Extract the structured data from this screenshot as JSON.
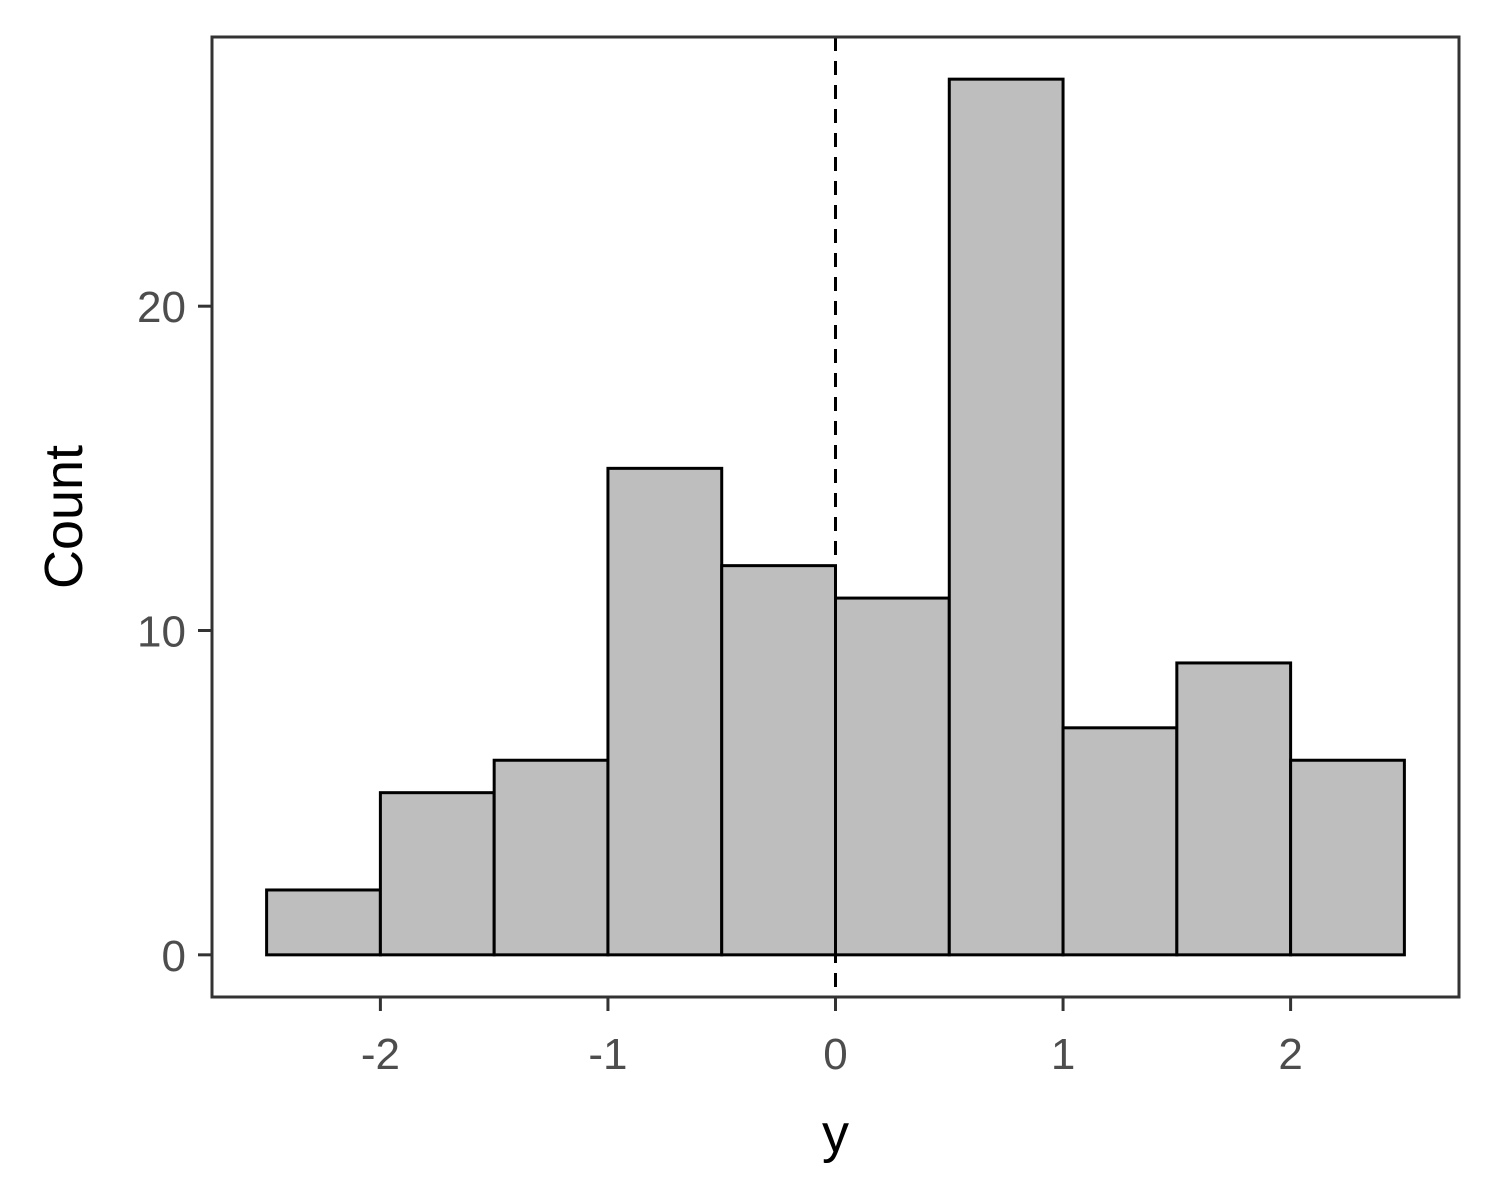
{
  "chart_data": {
    "type": "bar",
    "subtype": "histogram",
    "title": "",
    "xlabel": "y",
    "ylabel": "Count",
    "bin_width": 0.5,
    "bins": [
      {
        "x0": -2.5,
        "x1": -2.0,
        "count": 2
      },
      {
        "x0": -2.0,
        "x1": -1.5,
        "count": 5
      },
      {
        "x0": -1.5,
        "x1": -1.0,
        "count": 6
      },
      {
        "x0": -1.0,
        "x1": -0.5,
        "count": 15
      },
      {
        "x0": -0.5,
        "x1": 0.0,
        "count": 12
      },
      {
        "x0": 0.0,
        "x1": 0.5,
        "count": 11
      },
      {
        "x0": 0.5,
        "x1": 1.0,
        "count": 27
      },
      {
        "x0": 1.0,
        "x1": 1.5,
        "count": 7
      },
      {
        "x0": 1.5,
        "x1": 2.0,
        "count": 9
      },
      {
        "x0": 2.0,
        "x1": 2.5,
        "count": 6
      }
    ],
    "xlim": [
      -2.74,
      2.74
    ],
    "ylim": [
      -1.3,
      28.3
    ],
    "x_ticks": [
      {
        "value": -2,
        "label": "-2"
      },
      {
        "value": -1,
        "label": "-1"
      },
      {
        "value": 0,
        "label": "0"
      },
      {
        "value": 1,
        "label": "1"
      },
      {
        "value": 2,
        "label": "2"
      }
    ],
    "y_ticks": [
      {
        "value": 0,
        "label": "0"
      },
      {
        "value": 10,
        "label": "10"
      },
      {
        "value": 20,
        "label": "20"
      }
    ],
    "reference_line": {
      "x": 0,
      "style": "dashed",
      "color": "#000000"
    },
    "bar_fill": "#bebebe",
    "bar_stroke": "#000000",
    "panel_border": "#333333",
    "grid": false,
    "legend": "none"
  }
}
